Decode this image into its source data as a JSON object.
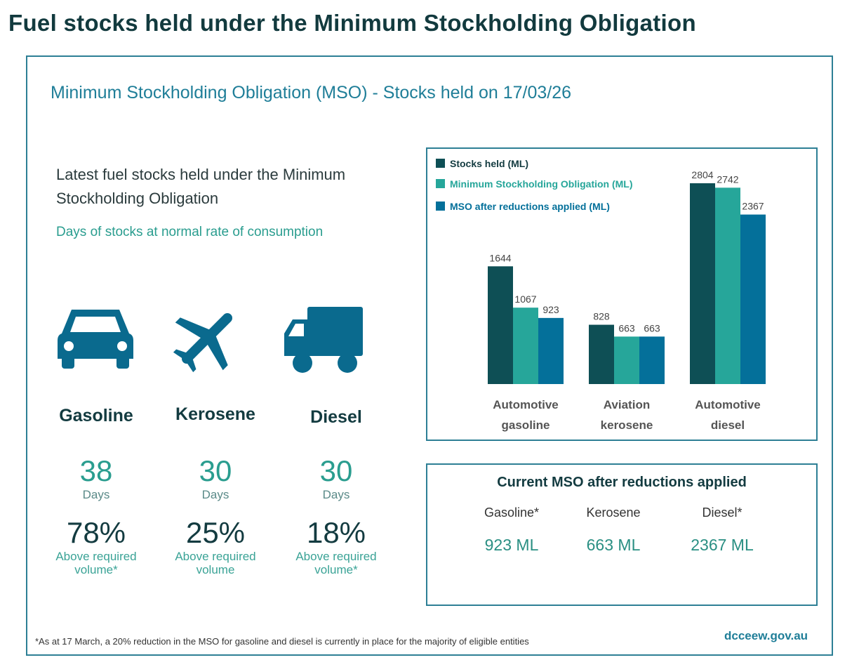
{
  "page_title": "Fuel stocks held under the Minimum Stockholding Obligation",
  "subtitle": "Minimum Stockholding Obligation (MSO) - Stocks held on 17/03/26",
  "latest_heading": "Latest fuel stocks held under the Minimum Stockholding Obligation",
  "days_caption": "Days of stocks at normal rate of consumption",
  "fuels": [
    {
      "name": "Gasoline",
      "icon": "car-icon",
      "days": "38",
      "days_label": "Days",
      "pct": "78%",
      "above_label": "Above required volume*"
    },
    {
      "name": "Kerosene",
      "icon": "airplane-icon",
      "days": "30",
      "days_label": "Days",
      "pct": "25%",
      "above_label": "Above required volume"
    },
    {
      "name": "Diesel",
      "icon": "truck-icon",
      "days": "30",
      "days_label": "Days",
      "pct": "18%",
      "above_label": "Above required volume*"
    }
  ],
  "colors": {
    "dark": "#0e4f55",
    "teal": "#26a69a",
    "blue": "#04709a",
    "icon": "#0a6a8e"
  },
  "chart_data": {
    "type": "bar",
    "categories": [
      "Automotive gasoline",
      "Aviation kerosene",
      "Automotive diesel"
    ],
    "series": [
      {
        "name": "Stocks held (ML)",
        "values": [
          1644,
          828,
          2804
        ],
        "color": "#0e4f55"
      },
      {
        "name": "Minimum Stockholding Obligation (ML)",
        "values": [
          1067,
          663,
          2742
        ],
        "color": "#26a69a"
      },
      {
        "name": "MSO after reductions applied (ML)",
        "values": [
          923,
          663,
          2367
        ],
        "color": "#04709a"
      }
    ],
    "ylim": [
      0,
      2804
    ],
    "grid": false,
    "legend": "top-left",
    "data_labels": true
  },
  "mso_box": {
    "title": "Current MSO after reductions applied",
    "items": [
      {
        "label": "Gasoline*",
        "value": "923 ML"
      },
      {
        "label": "Kerosene",
        "value": "663 ML"
      },
      {
        "label": "Diesel*",
        "value": "2367 ML"
      }
    ]
  },
  "footnote": "*As at 17 March, a 20% reduction in the MSO for gasoline and diesel is currently in place for the majority of eligible entities",
  "site": "dcceew.gov.au"
}
